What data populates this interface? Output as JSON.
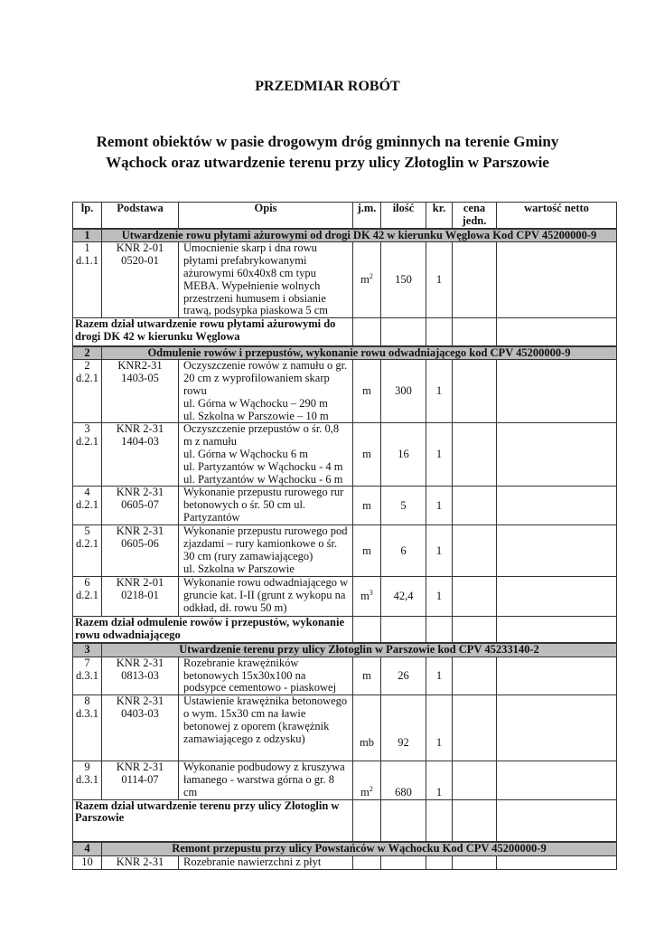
{
  "title": "PRZEDMIAR ROBÓT",
  "subtitle": "Remont obiektów w pasie drogowym dróg gminnych na terenie Gminy\nWąchock oraz utwardzenie terenu przy ulicy Złotoglin w Parszowie",
  "table": {
    "headers": [
      "lp.",
      "Podstawa",
      "Opis",
      "j.m.",
      "ilość",
      "kr.",
      "cena jedn.",
      "wartość netto"
    ],
    "sections": [
      {
        "no": "1",
        "title": "Utwardzenie rowu płytami ażurowymi od drogi DK 42 w kierunku Węglowa Kod CPV 45200000-9",
        "total": "Razem dział utwardzenie rowu płytami ażurowymi  do\ndrogi DK 42 w kierunku Węglowa"
      },
      {
        "no": "2",
        "title": "Odmulenie rowów i przepustów, wykonanie rowu odwadniającego  kod CPV 45200000-9",
        "total": "Razem dział odmulenie rowów i przepustów, wykonanie\nrowu odwadniającego"
      },
      {
        "no": "3",
        "title": "Utwardzenie terenu przy ulicy Złotoglin w Parszowie kod CPV 45233140-2",
        "total": "Razem dział utwardzenie terenu przy ulicy Złotoglin w\nParszowie"
      },
      {
        "no": "4",
        "title": "Remont przepustu przy ulicy Powstańców w Wąchocku Kod CPV 45200000-9"
      }
    ],
    "items": [
      {
        "lp": "1",
        "dz": "d.1.1",
        "base1": "KNR 2-01",
        "base2": "0520-01",
        "desc": "Umocnienie skarp i dna rowu\npłytami prefabrykowanymi\nażurowymi 60x40x8 cm typu\nMEBA. Wypełnienie wolnych\nprzestrzeni humusem i obsianie\ntrawą, podsypka piaskowa 5 cm",
        "unit": "m",
        "unit_sup": "2",
        "qty": "150",
        "kr": "1"
      },
      {
        "lp": "2",
        "dz": "d.2.1",
        "base1": "KNR2-31",
        "base2": "1403-05",
        "desc": "Oczyszczenie rowów z namułu o gr.\n20 cm z wyprofilowaniem skarp\nrowu\nul. Górna w Wąchocku – 290 m\nul. Szkolna w Parszowie – 10 m",
        "unit": "m",
        "unit_sup": "",
        "qty": "300",
        "kr": "1"
      },
      {
        "lp": "3",
        "dz": "d.2.1",
        "base1": "KNR 2-31",
        "base2": "1404-03",
        "desc": "Oczyszczenie przepustów o śr. 0,8\nm z namułu\nul. Górna  w Wąchocku 6 m\nul. Partyzantów w Wąchocku - 4 m\nul. Partyzantów w Wąchocku - 6 m",
        "unit": "m",
        "unit_sup": "",
        "qty": "16",
        "kr": "1"
      },
      {
        "lp": "4",
        "dz": "d.2.1",
        "base1": "KNR 2-31",
        "base2": "0605-07",
        "desc": "Wykonanie przepustu rurowego rur\nbetonowych o śr. 50 cm ul.\nPartyzantów",
        "unit": "m",
        "unit_sup": "",
        "qty": "5",
        "kr": "1"
      },
      {
        "lp": "5",
        "dz": "d.2.1",
        "base1": "KNR 2-31",
        "base2": "0605-06",
        "desc": "Wykonanie przepustu rurowego pod\nzjazdami – rury kamionkowe o śr.\n30 cm (rury zamawiającego)\nul. Szkolna w Parszowie",
        "unit": "m",
        "unit_sup": "",
        "qty": "6",
        "kr": "1"
      },
      {
        "lp": "6",
        "dz": "d.2.1",
        "base1": "KNR 2-01",
        "base2": "0218-01",
        "desc": "Wykonanie rowu odwadniającego w\ngruncie kat. I-II (grunt z wykopu na\nodkład, dł. rowu 50 m)",
        "unit": "m",
        "unit_sup": "3",
        "qty": "42,4",
        "kr": "1"
      },
      {
        "lp": "7",
        "dz": "d.3.1",
        "base1": "KNR 2-31",
        "base2": "0813-03",
        "desc": "Rozebranie krawężników\nbetonowych  15x30x100 na\npodsypce cementowo - piaskowej",
        "unit": "m",
        "unit_sup": "",
        "qty": "26",
        "kr": "1"
      },
      {
        "lp": "8",
        "dz": "d.3.1",
        "base1": "KNR 2-31",
        "base2": "0403-03",
        "desc": "Ustawienie krawężnika betonowego\no wym. 15x30 cm na ławie\nbetonowej z oporem (krawężnik\nzamawiającego z odzysku)",
        "unit": "mb",
        "unit_sup": "",
        "qty": "92",
        "kr": "1"
      },
      {
        "lp": "9",
        "dz": "d.3.1",
        "base1": "KNR 2-31",
        "base2": "0114-07",
        "desc": "Wykonanie podbudowy z kruszywa\nłamanego  - warstwa górna o gr. 8\ncm",
        "unit": "m",
        "unit_sup": "2",
        "qty": "680",
        "kr": "1"
      },
      {
        "lp": "10",
        "dz": "",
        "base1": "KNR 2-31",
        "base2": "",
        "desc": "Rozebranie nawierzchni z płyt",
        "unit": "",
        "unit_sup": "",
        "qty": "",
        "kr": ""
      }
    ]
  }
}
